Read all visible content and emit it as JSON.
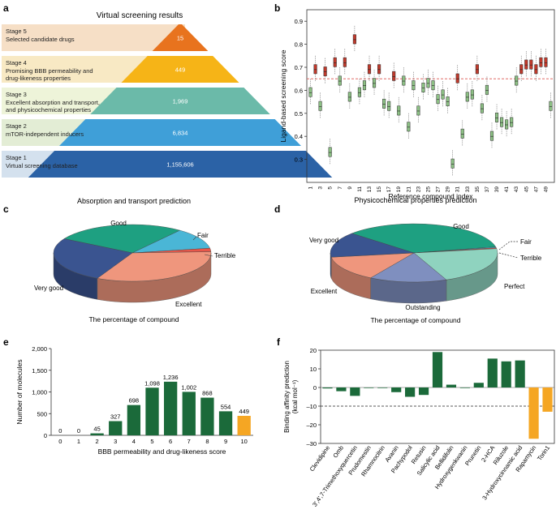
{
  "panels": {
    "a": {
      "letter": "a",
      "title": "Virtual screening results",
      "stages": [
        {
          "label": "Stage 5",
          "desc": [
            "Selected candidate drugs"
          ],
          "count": "15",
          "fill": "#e8731e",
          "band": "#f6dfc6"
        },
        {
          "label": "Stage 4",
          "desc": [
            "Promising BBB permeability and",
            "drug-likeness properties"
          ],
          "count": "449",
          "fill": "#f6b417",
          "band": "#f8e9c4"
        },
        {
          "label": "Stage 3",
          "desc": [
            "Excellent absorption and transport,",
            "and physicochemical properties"
          ],
          "count": "1,969",
          "fill": "#6bbaa9",
          "band": "#eef4d9"
        },
        {
          "label": "Stage 2",
          "desc": [
            "mTOR-independent inducers"
          ],
          "count": "6,834",
          "fill": "#3f9fd8",
          "band": "#e3edd5"
        },
        {
          "label": "Stage 1",
          "desc": [
            "Virtual screening database"
          ],
          "count": "1,155,606",
          "fill": "#2b62a6",
          "band": "#d4e1ee"
        }
      ]
    },
    "b": {
      "letter": "b"
    },
    "c": {
      "letter": "c"
    },
    "d": {
      "letter": "d"
    },
    "e": {
      "letter": "e"
    },
    "f": {
      "letter": "f"
    }
  },
  "chart_data": [
    {
      "id": "b",
      "type": "box",
      "xlabel": "Reference compound index",
      "ylabel": "Ligand-based screening score",
      "ylim": [
        0.2,
        0.95
      ],
      "yticks": [
        0.3,
        0.4,
        0.5,
        0.6,
        0.7,
        0.8,
        0.9
      ],
      "threshold": 0.65,
      "colors": {
        "above": "#c0392b",
        "below": "#8cc084"
      },
      "medians": [
        0.59,
        0.69,
        0.53,
        0.68,
        0.33,
        0.72,
        0.64,
        0.72,
        0.57,
        0.82,
        0.59,
        0.62,
        0.69,
        0.63,
        0.69,
        0.54,
        0.53,
        0.66,
        0.51,
        0.64,
        0.44,
        0.62,
        0.51,
        0.61,
        0.63,
        0.62,
        0.56,
        0.58,
        0.55,
        0.28,
        0.65,
        0.41,
        0.57,
        0.58,
        0.69,
        0.52,
        0.6,
        0.4,
        0.48,
        0.46,
        0.45,
        0.46,
        0.64,
        0.69,
        0.71,
        0.71,
        0.69,
        0.72,
        0.72,
        0.53
      ],
      "tick_labels": [
        "1",
        "3",
        "5",
        "7",
        "9",
        "11",
        "13",
        "15",
        "17",
        "19",
        "21",
        "23",
        "25",
        "27",
        "29",
        "31",
        "33",
        "35",
        "37",
        "39",
        "41",
        "43",
        "45",
        "47",
        "49"
      ]
    },
    {
      "id": "c",
      "type": "pie",
      "title": "Absorption and transport prediction",
      "caption": "The percentage of compound",
      "slices": [
        {
          "label": "Good",
          "value": 27,
          "color": "#1ea081"
        },
        {
          "label": "Fair",
          "value": 12,
          "color": "#4ab6d6"
        },
        {
          "label": "Terrible",
          "value": 2,
          "color": "#e8574a"
        },
        {
          "label": "Excellent",
          "value": 33,
          "color": "#ef967d"
        },
        {
          "label": "Very good",
          "value": 26,
          "color": "#3a5490"
        }
      ]
    },
    {
      "id": "d",
      "type": "pie",
      "title": "Physicochemical properties prediction",
      "caption": "The percentage of compound",
      "slices": [
        {
          "label": "Good",
          "value": 35,
          "color": "#1ea081"
        },
        {
          "label": "Fair",
          "value": 0.5,
          "color": "#4ab6d6"
        },
        {
          "label": "Terrible",
          "value": 0.5,
          "color": "#e8574a"
        },
        {
          "label": "Perfect",
          "value": 21,
          "color": "#8fd3bf"
        },
        {
          "label": "Outstanding",
          "value": 15,
          "color": "#7f8fbf"
        },
        {
          "label": "Excellent",
          "value": 14,
          "color": "#ef967d"
        },
        {
          "label": "Very good",
          "value": 14,
          "color": "#3a5490"
        }
      ]
    },
    {
      "id": "e",
      "type": "bar",
      "xlabel": "BBB permeability and drug-likeness score",
      "ylabel": "Number of molecules",
      "ylim": [
        0,
        2000
      ],
      "yticks": [
        "0",
        "500",
        "1,000",
        "1,500",
        "2,000"
      ],
      "categories": [
        "0",
        "1",
        "2",
        "3",
        "4",
        "5",
        "6",
        "7",
        "8",
        "9",
        "10"
      ],
      "values": [
        0,
        0,
        45,
        327,
        698,
        1098,
        1236,
        1002,
        868,
        554,
        449
      ],
      "value_labels": [
        "0",
        "0",
        "45",
        "327",
        "698",
        "1,098",
        "1,236",
        "1,002",
        "868",
        "554",
        "449"
      ],
      "colors": {
        "default": "#1b6a3a",
        "highlight": "#f5a623"
      }
    },
    {
      "id": "f",
      "type": "bar",
      "ylabel": "Binding affinity prediction (kcal mol⁻¹)",
      "ylim": [
        -30,
        20
      ],
      "yticks": [
        -30,
        -20,
        -10,
        0,
        10,
        20
      ],
      "reference_line": -10,
      "categories": [
        "Clevidipine",
        "Omb",
        "3',4',7-Trimethoxyquercetin",
        "Prudomestin",
        "Rhamnocitrin",
        "Avanin",
        "Pachypodol",
        "Retusin",
        "Salicylic acid",
        "Bellidifolin",
        "Hydroxygenkwanin",
        "Prunetin",
        "2-HCA",
        "Riluzole",
        "3-Hydroxycinnamic acid",
        "Rapamycin",
        "Torin1"
      ],
      "values": [
        -0.5,
        -2,
        -4.5,
        -0.3,
        -0.3,
        -2.5,
        -5,
        -4,
        19,
        1.5,
        -0.3,
        2.5,
        15.5,
        14,
        14.5,
        -27.5,
        -13
      ],
      "colors": {
        "default": "#1b6a3a",
        "highlight": "#f5a623"
      }
    }
  ]
}
